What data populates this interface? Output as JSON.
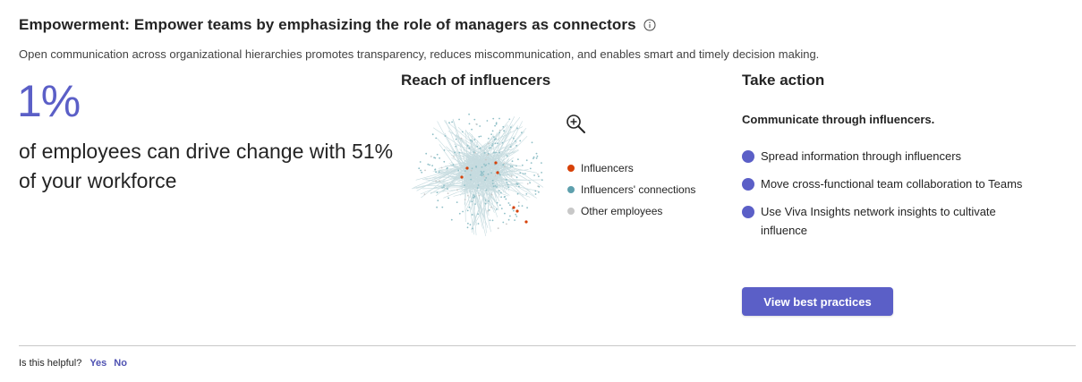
{
  "header": {
    "title": "Empowerment: Empower teams by emphasizing the role of managers as connectors",
    "subtitle": "Open communication across organizational hierarchies promotes transparency, reduces miscommunication, and enables smart and timely decision making."
  },
  "stat": {
    "value": "1%",
    "description": "of employees can drive change with 51% of your workforce"
  },
  "reach": {
    "title": "Reach of influencers",
    "legend": [
      {
        "label": "Influencers",
        "color": "#d74108"
      },
      {
        "label": "Influencers' connections",
        "color": "#5ea0ad"
      },
      {
        "label": "Other employees",
        "color": "#c8c8c8"
      }
    ]
  },
  "action": {
    "title": "Take action",
    "subtitle": "Communicate through influencers.",
    "items": [
      "Spread information through influencers",
      "Move cross-functional team collaboration to Teams",
      "Use Viva Insights network insights to cultivate influence"
    ],
    "button_label": "View best practices"
  },
  "feedback": {
    "question": "Is this helpful?",
    "yes": "Yes",
    "no": "No"
  },
  "colors": {
    "accent": "#5b5fc7",
    "link": "#4f52b2"
  }
}
